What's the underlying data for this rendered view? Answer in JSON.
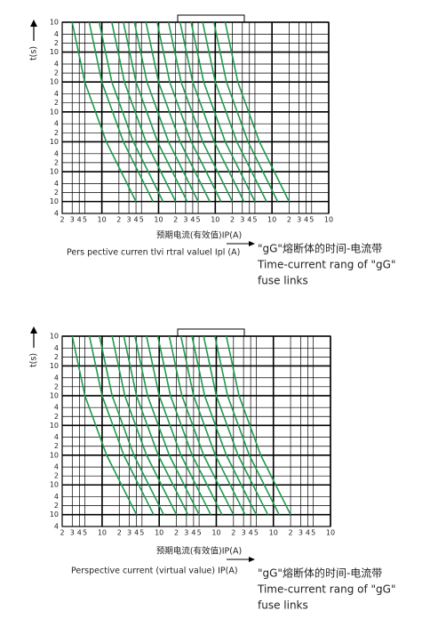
{
  "chart_data": [
    {
      "type": "line",
      "log_x": true,
      "log_y": true,
      "grid": true,
      "ylabel": "t(s)",
      "xlabel": "预期电流(有效值)IP(A)",
      "xlabel_en": "Pers pective curren tlvi rtral valuel Ipl (A)",
      "annotations": [
        "\"gG\"熔断体的时间-电流带",
        "Time-current rang of \"gG\"",
        "fuse links"
      ],
      "xlim": [
        2,
        100000
      ],
      "ylim": [
        0.004,
        10000
      ],
      "xticks": [
        2,
        3,
        4,
        5,
        10,
        {
          "value": 20,
          "label": "2"
        },
        {
          "value": 30,
          "label": "3"
        },
        {
          "value": 40,
          "label": "4"
        },
        {
          "value": 50,
          "label": "5"
        },
        {
          "value": 100,
          "label": "10"
        },
        {
          "value": 200,
          "label": "2"
        },
        {
          "value": 300,
          "label": "3"
        },
        {
          "value": 400,
          "label": "4"
        },
        {
          "value": 500,
          "label": "5"
        },
        {
          "value": 1000,
          "label": "10"
        },
        {
          "value": 2000,
          "label": "2"
        },
        {
          "value": 3000,
          "label": "3"
        },
        {
          "value": 4000,
          "label": "4"
        },
        {
          "value": 5000,
          "label": "5"
        },
        {
          "value": 10000,
          "label": "10"
        },
        {
          "value": 20000,
          "label": "2"
        },
        {
          "value": 30000,
          "label": "3"
        },
        {
          "value": 40000,
          "label": "4"
        },
        {
          "value": 50000,
          "label": "5"
        },
        {
          "value": 100000,
          "label": "10"
        }
      ],
      "yticks": [
        {
          "value": 10000,
          "label": "10"
        },
        {
          "value": 4000,
          "label": "4"
        },
        {
          "value": 2000,
          "label": "2"
        },
        {
          "value": 1000,
          "label": "10"
        },
        {
          "value": 400,
          "label": "4"
        },
        {
          "value": 200,
          "label": "2"
        },
        {
          "value": 100,
          "label": "10"
        },
        {
          "value": 40,
          "label": "4"
        },
        {
          "value": 20,
          "label": "2"
        },
        10,
        4,
        2,
        {
          "value": 1,
          "label": "10"
        },
        {
          "value": 0.4,
          "label": "4"
        },
        {
          "value": 0.2,
          "label": "2"
        },
        {
          "value": 0.1,
          "label": "10"
        },
        {
          "value": 0.04,
          "label": "4"
        },
        {
          "value": 0.02,
          "label": "2"
        },
        {
          "value": 0.01,
          "label": "10"
        },
        {
          "value": 0.004,
          "label": "4"
        }
      ],
      "color": "#1f9a4e",
      "series": [
        {
          "x": [
            3,
            5,
            12,
            40
          ],
          "values": [
            10000,
            100,
            1,
            0.01
          ]
        },
        {
          "x": [
            6,
            10,
            24,
            80
          ],
          "values": [
            10000,
            100,
            1,
            0.01
          ]
        },
        {
          "x": [
            9,
            15,
            36,
            120
          ],
          "values": [
            10000,
            100,
            1,
            0.01
          ]
        },
        {
          "x": [
            15,
            25,
            60,
            200
          ],
          "values": [
            10000,
            100,
            1,
            0.01
          ]
        },
        {
          "x": [
            24,
            40,
            96,
            320
          ],
          "values": [
            10000,
            100,
            1,
            0.01
          ]
        },
        {
          "x": [
            37.5,
            62.5,
            150,
            500
          ],
          "values": [
            10000,
            100,
            1,
            0.01
          ]
        },
        {
          "x": [
            60,
            100,
            240,
            800
          ],
          "values": [
            10000,
            100,
            1,
            0.01
          ]
        },
        {
          "x": [
            94.5,
            157.5,
            378,
            1260
          ],
          "values": [
            10000,
            100,
            1,
            0.01
          ]
        },
        {
          "x": [
            150,
            250,
            600,
            2000
          ],
          "values": [
            10000,
            100,
            1,
            0.01
          ]
        },
        {
          "x": [
            240,
            400,
            960,
            3200
          ],
          "values": [
            10000,
            100,
            1,
            0.01
          ]
        },
        {
          "x": [
            375,
            625,
            1500,
            5000
          ],
          "values": [
            10000,
            100,
            1,
            0.01
          ]
        },
        {
          "x": [
            600,
            1000,
            2400,
            8000
          ],
          "values": [
            10000,
            100,
            1,
            0.01
          ]
        },
        {
          "x": [
            945,
            1575,
            3780,
            12600
          ],
          "values": [
            10000,
            100,
            1,
            0.01
          ]
        },
        {
          "x": [
            1500,
            2500,
            6000,
            20000
          ],
          "values": [
            10000,
            100,
            1,
            0.01
          ]
        }
      ]
    },
    {
      "type": "line",
      "log_x": true,
      "log_y": true,
      "grid": true,
      "ylabel": "t(s)",
      "xlabel": "预期电流(有效值)IP(A)",
      "xlabel_en": "Perspective current (virtual value) IP(A)",
      "annotations": [
        "\"gG\"熔断体的时间-电流带",
        "Time-current rang of \"gG\"",
        "fuse links"
      ],
      "xlim": [
        2,
        100000
      ],
      "ylim": [
        0.004,
        10000
      ],
      "xticks": [
        2,
        3,
        4,
        5,
        10,
        {
          "value": 20,
          "label": "2"
        },
        {
          "value": 30,
          "label": "3"
        },
        {
          "value": 40,
          "label": "4"
        },
        {
          "value": 50,
          "label": "5"
        },
        {
          "value": 100,
          "label": "10"
        },
        {
          "value": 200,
          "label": "2"
        },
        {
          "value": 300,
          "label": "3"
        },
        {
          "value": 400,
          "label": "4"
        },
        {
          "value": 500,
          "label": "5"
        },
        {
          "value": 1000,
          "label": "10"
        },
        {
          "value": 2000,
          "label": "2"
        },
        {
          "value": 3000,
          "label": "3"
        },
        {
          "value": 4000,
          "label": "4"
        },
        {
          "value": 5000,
          "label": "5"
        },
        {
          "value": 10000,
          "label": "10"
        },
        {
          "value": 20000,
          "label": "2"
        },
        {
          "value": 30000,
          "label": "3"
        },
        {
          "value": 40000,
          "label": "4"
        },
        {
          "value": 50000,
          "label": "5"
        },
        {
          "value": 100000,
          "label": "10"
        }
      ],
      "yticks": [
        {
          "value": 10000,
          "label": "10"
        },
        {
          "value": 4000,
          "label": "4"
        },
        {
          "value": 2000,
          "label": "2"
        },
        {
          "value": 1000,
          "label": "10"
        },
        {
          "value": 400,
          "label": "4"
        },
        {
          "value": 200,
          "label": "2"
        },
        {
          "value": 100,
          "label": "10"
        },
        {
          "value": 40,
          "label": "4"
        },
        {
          "value": 20,
          "label": "2"
        },
        10,
        4,
        2,
        {
          "value": 1,
          "label": "10"
        },
        {
          "value": 0.4,
          "label": "4"
        },
        {
          "value": 0.2,
          "label": "2"
        },
        {
          "value": 0.1,
          "label": "10"
        },
        {
          "value": 0.04,
          "label": "4"
        },
        {
          "value": 0.02,
          "label": "2"
        },
        {
          "value": 0.01,
          "label": "10"
        },
        {
          "value": 0.004,
          "label": "4"
        }
      ],
      "color": "#1f9a4e",
      "series": [
        {
          "x": [
            3,
            5,
            12,
            40
          ],
          "values": [
            10000,
            100,
            1,
            0.01
          ]
        },
        {
          "x": [
            6,
            10,
            24,
            80
          ],
          "values": [
            10000,
            100,
            1,
            0.01
          ]
        },
        {
          "x": [
            9,
            15,
            36,
            120
          ],
          "values": [
            10000,
            100,
            1,
            0.01
          ]
        },
        {
          "x": [
            15,
            25,
            60,
            200
          ],
          "values": [
            10000,
            100,
            1,
            0.01
          ]
        },
        {
          "x": [
            24,
            40,
            96,
            320
          ],
          "values": [
            10000,
            100,
            1,
            0.01
          ]
        },
        {
          "x": [
            37.5,
            62.5,
            150,
            500
          ],
          "values": [
            10000,
            100,
            1,
            0.01
          ]
        },
        {
          "x": [
            60,
            100,
            240,
            800
          ],
          "values": [
            10000,
            100,
            1,
            0.01
          ]
        },
        {
          "x": [
            94.5,
            157.5,
            378,
            1260
          ],
          "values": [
            10000,
            100,
            1,
            0.01
          ]
        },
        {
          "x": [
            150,
            250,
            600,
            2000
          ],
          "values": [
            10000,
            100,
            1,
            0.01
          ]
        },
        {
          "x": [
            240,
            400,
            960,
            3200
          ],
          "values": [
            10000,
            100,
            1,
            0.01
          ]
        },
        {
          "x": [
            375,
            625,
            1500,
            5000
          ],
          "values": [
            10000,
            100,
            1,
            0.01
          ]
        },
        {
          "x": [
            600,
            1000,
            2400,
            8000
          ],
          "values": [
            10000,
            100,
            1,
            0.01
          ]
        },
        {
          "x": [
            945,
            1575,
            3780,
            12600
          ],
          "values": [
            10000,
            100,
            1,
            0.01
          ]
        },
        {
          "x": [
            1500,
            2500,
            6000,
            20000
          ],
          "values": [
            10000,
            100,
            1,
            0.01
          ]
        }
      ]
    }
  ]
}
